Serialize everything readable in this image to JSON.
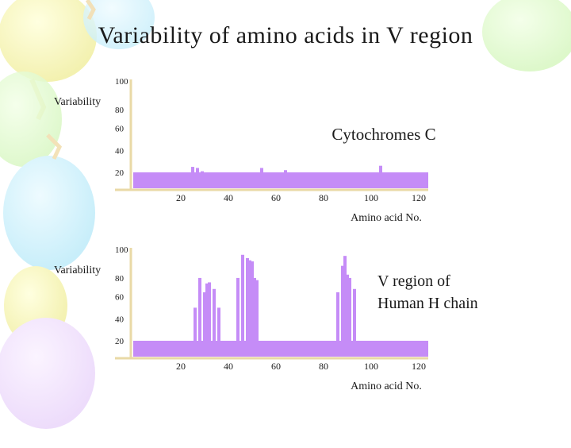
{
  "slide": {
    "title": "Variability of amino acids in V region"
  },
  "colors": {
    "bar": "#c58cf7",
    "axis": "#e9d9a6",
    "text": "#1a1a1a"
  },
  "chart_data": [
    {
      "type": "bar",
      "title": "Cytochromes C",
      "ylabel": "Variability",
      "xlabel": "Amino acid No.",
      "ylim": [
        0,
        100
      ],
      "xlim": [
        0,
        124
      ],
      "y_ticks": [
        "20",
        "40",
        "60",
        "80",
        "100"
      ],
      "x_ticks": [
        "20",
        "40",
        "60",
        "80",
        "100",
        "120"
      ],
      "baseline_band": 20,
      "x": [
        25,
        27,
        29,
        54,
        64,
        104
      ],
      "values": [
        25,
        24,
        21,
        24,
        22,
        26
      ]
    },
    {
      "type": "bar",
      "title": "V region of Human H chain",
      "title_lines": [
        "V region of",
        "Human H chain"
      ],
      "ylabel": "Variability",
      "xlabel": "Amino acid No.",
      "ylim": [
        0,
        100
      ],
      "xlim": [
        0,
        124
      ],
      "y_ticks": [
        "20",
        "40",
        "60",
        "80",
        "100"
      ],
      "x_ticks": [
        "20",
        "40",
        "60",
        "80",
        "100",
        "120"
      ],
      "baseline_band": 20,
      "x": [
        26,
        28,
        30,
        31,
        32,
        34,
        36,
        44,
        46,
        48,
        49,
        50,
        51,
        52,
        86,
        88,
        89,
        90,
        91,
        93
      ],
      "values": [
        50,
        77,
        64,
        72,
        73,
        67,
        50,
        77,
        98,
        95,
        93,
        92,
        77,
        75,
        64,
        88,
        97,
        80,
        77,
        67
      ]
    }
  ]
}
